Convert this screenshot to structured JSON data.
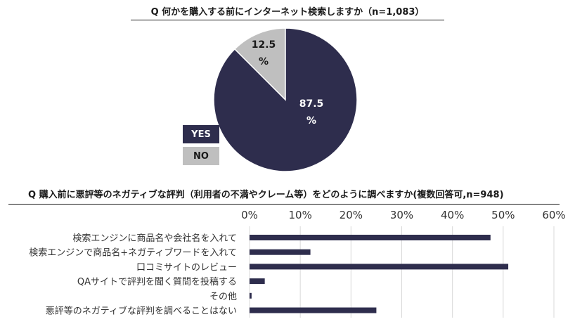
{
  "pie_question": "Q 何かを購入する前にインターネット検索しますか（n=1,083）",
  "bar_question": "Q 購入前に悪評等のネガティブな評判（利用者の不満やクレーム等）をどのように調べますか(複数回答可,n=948)",
  "colors": {
    "navy": "#2e2d4d",
    "gray": "#bfbfbf",
    "grid": "#d9d9d9"
  },
  "chart_data": [
    {
      "type": "pie",
      "title": "Q 何かを購入する前にインターネット検索しますか（n=1,083）",
      "slices": [
        {
          "label": "YES",
          "value": 87.5,
          "value_line1": "87.5",
          "value_line2": "%",
          "color": "#2e2d4d"
        },
        {
          "label": "NO",
          "value": 12.5,
          "value_line1": "12.5",
          "value_line2": "%",
          "color": "#bfbfbf"
        }
      ]
    },
    {
      "type": "bar",
      "orientation": "horizontal",
      "title": "Q 購入前に悪評等のネガティブな評判（利用者の不満やクレーム等）をどのように調べますか(複数回答可,n=948)",
      "xlim": [
        0,
        60
      ],
      "ticks": [
        0,
        10,
        20,
        30,
        40,
        50,
        60
      ],
      "tick_labels": [
        "0%",
        "10%",
        "20%",
        "30%",
        "40%",
        "50%",
        "60%"
      ],
      "grid": true,
      "categories": [
        "検索エンジンに商品名や会社名を入れて",
        "検索エンジンで商品名+ネガティブワードを入れて",
        "口コミサイトのレビュー",
        "QAサイトで評判を聞く質問を投稿する",
        "その他",
        "悪評等のネガティブな評判を調べることはない"
      ],
      "values": [
        47.5,
        12,
        51,
        3,
        0.4,
        25
      ]
    }
  ]
}
